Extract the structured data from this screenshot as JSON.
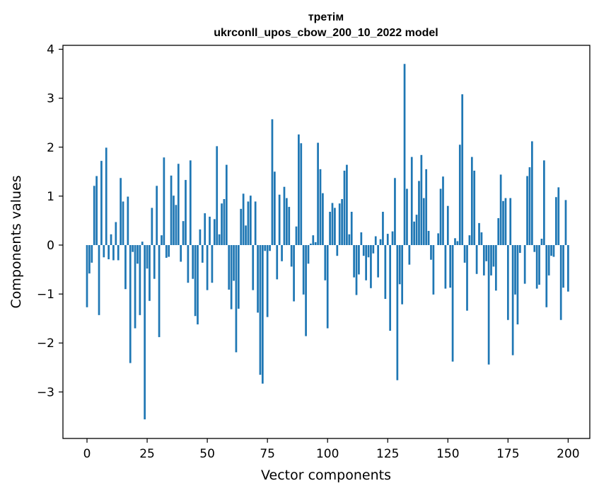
{
  "chart_data": {
    "type": "bar",
    "title": "третім",
    "subtitle": "ukrconll_upos_cbow_200_10_2022 model",
    "xlabel": "Vector components",
    "ylabel": "Components values",
    "xlim": [
      -10,
      209
    ],
    "ylim": [
      -3.95,
      4.08
    ],
    "xticks": [
      0,
      25,
      50,
      75,
      100,
      125,
      150,
      175,
      200
    ],
    "yticks": [
      -3,
      -2,
      -1,
      0,
      1,
      2,
      3,
      4
    ],
    "bar_color": "#1f77b4",
    "grid": false,
    "values": [
      -1.27,
      -0.58,
      -0.36,
      1.21,
      1.41,
      -1.43,
      1.72,
      -0.25,
      1.99,
      -0.29,
      0.22,
      -0.31,
      0.47,
      -0.31,
      1.37,
      0.89,
      -0.9,
      0.99,
      -2.41,
      -0.14,
      -1.7,
      -0.38,
      -1.43,
      0.07,
      -3.56,
      -0.48,
      -1.14,
      0.76,
      -0.69,
      1.21,
      -1.88,
      0.2,
      1.79,
      -0.26,
      -0.24,
      1.42,
      1.01,
      0.82,
      1.66,
      -0.34,
      0.49,
      1.33,
      -0.77,
      1.73,
      -0.69,
      -1.45,
      -1.62,
      0.32,
      -0.36,
      0.65,
      -0.92,
      0.58,
      -0.77,
      0.53,
      2.02,
      0.22,
      0.85,
      0.94,
      1.64,
      -0.91,
      -1.31,
      -0.73,
      -2.19,
      -1.3,
      0.74,
      1.05,
      0.4,
      0.89,
      1.01,
      -0.92,
      0.89,
      -1.38,
      -2.65,
      -2.83,
      -0.12,
      -1.47,
      -0.12,
      2.57,
      1.5,
      -0.7,
      1.03,
      -0.33,
      1.19,
      0.96,
      0.78,
      -0.44,
      -1.15,
      0.38,
      2.26,
      2.08,
      -1.01,
      -1.86,
      -0.38,
      0.03,
      0.2,
      0.06,
      2.09,
      1.55,
      1.06,
      -0.72,
      -1.7,
      0.68,
      0.86,
      0.76,
      -0.22,
      0.85,
      0.94,
      1.52,
      1.64,
      0.22,
      0.68,
      -0.66,
      -1.02,
      -0.6,
      0.26,
      -0.22,
      -0.72,
      -0.25,
      -0.88,
      -0.17,
      0.18,
      -0.66,
      0.12,
      0.68,
      -1.1,
      0.23,
      -1.75,
      0.28,
      1.37,
      -2.76,
      -0.8,
      -1.21,
      3.7,
      1.15,
      -0.4,
      1.8,
      0.48,
      0.62,
      1.31,
      1.84,
      0.96,
      1.55,
      0.29,
      -0.3,
      -1.01,
      0.0,
      0.24,
      1.15,
      1.4,
      -0.89,
      0.8,
      -0.87,
      -2.38,
      0.14,
      0.08,
      2.05,
      3.08,
      -0.36,
      -1.34,
      0.2,
      1.8,
      1.52,
      -0.59,
      0.45,
      0.26,
      -0.62,
      -0.33,
      -2.44,
      -0.62,
      -0.44,
      -0.93,
      0.55,
      1.44,
      0.9,
      0.96,
      -1.53,
      0.96,
      -2.25,
      -1.01,
      -1.62,
      -0.16,
      0.0,
      -0.79,
      1.41,
      1.59,
      2.12,
      -0.14,
      -0.89,
      -0.81,
      0.13,
      1.73,
      -1.27,
      -0.62,
      -0.22,
      -0.24,
      0.98,
      1.18,
      -1.53,
      -0.87,
      0.92,
      -0.95
    ]
  }
}
